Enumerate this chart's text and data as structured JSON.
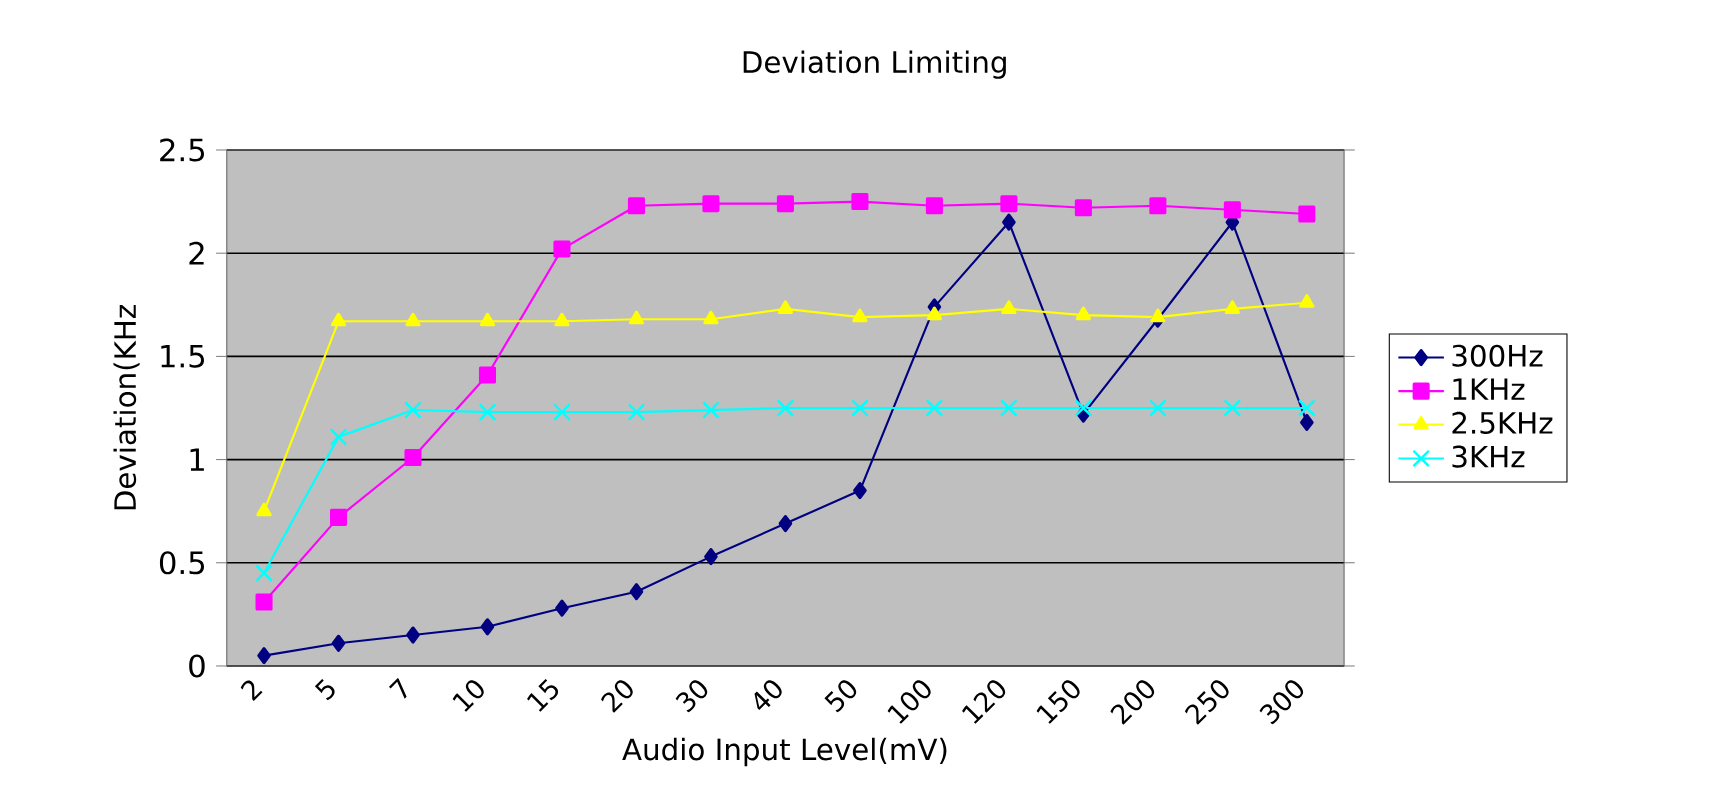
{
  "chart_data": {
    "type": "line",
    "title": "Deviation Limiting",
    "xlabel": "Audio Input Level(mV)",
    "ylabel": "Deviation(KHz",
    "categories": [
      "2",
      "5",
      "7",
      "10",
      "15",
      "20",
      "30",
      "40",
      "50",
      "100",
      "120",
      "150",
      "200",
      "250",
      "300"
    ],
    "series": [
      {
        "name": "300Hz",
        "color": "#000080",
        "marker": "diamond",
        "values": [
          0.05,
          0.11,
          0.15,
          0.19,
          0.28,
          0.36,
          0.53,
          0.69,
          0.85,
          1.74,
          2.15,
          1.22,
          1.68,
          2.15,
          1.18
        ]
      },
      {
        "name": "1KHz",
        "color": "#ff00ff",
        "marker": "square",
        "values": [
          0.31,
          0.72,
          1.01,
          1.41,
          2.02,
          2.23,
          2.24,
          2.24,
          2.25,
          2.23,
          2.24,
          2.22,
          2.23,
          2.21,
          2.19
        ]
      },
      {
        "name": "2.5KHz",
        "color": "#ffff00",
        "marker": "triangle",
        "values": [
          0.75,
          1.67,
          1.67,
          1.67,
          1.67,
          1.68,
          1.68,
          1.73,
          1.69,
          1.7,
          1.73,
          1.7,
          1.69,
          1.73,
          1.76
        ]
      },
      {
        "name": "3KHz",
        "color": "#00ffff",
        "marker": "cross",
        "values": [
          0.45,
          1.11,
          1.24,
          1.23,
          1.23,
          1.23,
          1.24,
          1.25,
          1.25,
          1.25,
          1.25,
          1.25,
          1.25,
          1.25,
          1.25
        ]
      }
    ],
    "ylim": [
      0,
      2.5
    ],
    "yticks": [
      0,
      0.5,
      1,
      1.5,
      2,
      2.5
    ],
    "grid": "y",
    "legend": "right"
  }
}
